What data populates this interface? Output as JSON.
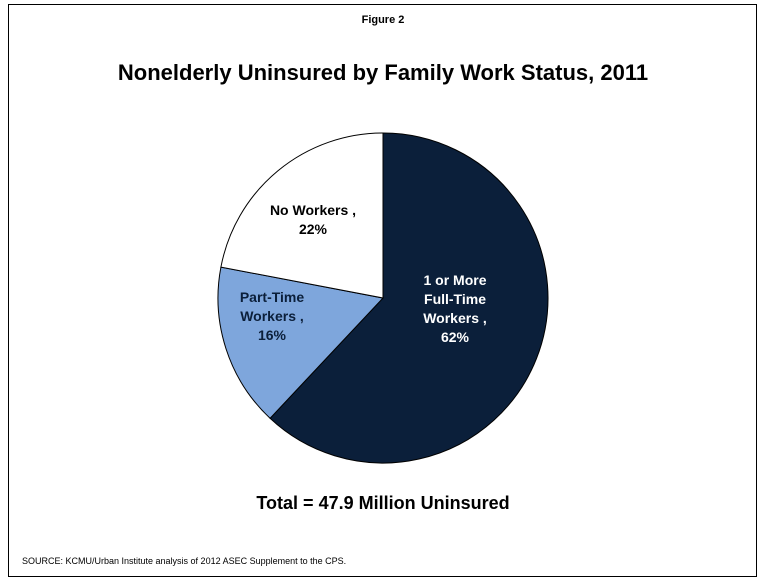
{
  "header": {
    "figure_label": "Figure 2",
    "title": "Nonelderly Uninsured by Family Work Status, 2011"
  },
  "chart_data": {
    "type": "pie",
    "title": "Nonelderly Uninsured by Family Work Status, 2011",
    "slices": [
      {
        "label_lines": [
          "1 or More",
          "Full-Time",
          "Workers ,",
          "62%"
        ],
        "name": "1 or More Full-Time Workers",
        "value": 62,
        "color": "#0b1f3a"
      },
      {
        "label_lines": [
          "Part-Time",
          "Workers ,",
          "16%"
        ],
        "name": "Part-Time Workers",
        "value": 16,
        "color": "#7ea6dc"
      },
      {
        "label_lines": [
          "No Workers ,",
          "22%"
        ],
        "name": "No Workers",
        "value": 22,
        "color": "#ffffff"
      }
    ],
    "start_angle_deg": 0,
    "direction": "clockwise",
    "legend": "none"
  },
  "footer": {
    "total": "Total = 47.9 Million Uninsured",
    "source": "SOURCE: KCMU/Urban Institute analysis of 2012 ASEC Supplement to the CPS."
  }
}
